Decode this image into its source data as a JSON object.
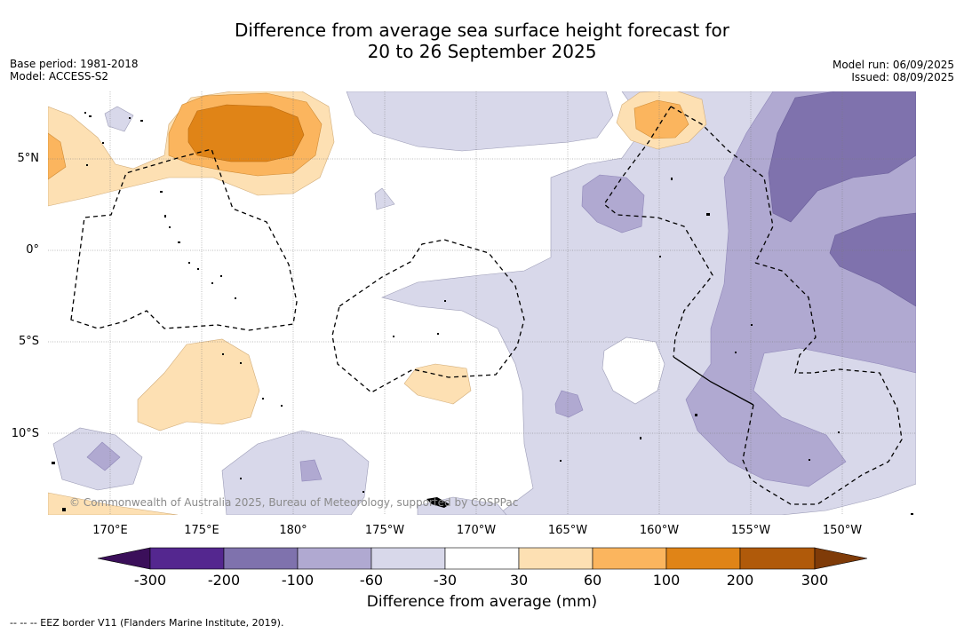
{
  "title": {
    "line1": "Difference from average sea surface height forecast for",
    "line2": "20 to 26 September 2025"
  },
  "meta_left": {
    "base_period": "Base period: 1981-2018",
    "model": "Model: ACCESS-S2"
  },
  "meta_right": {
    "model_run": "Model run: 06/09/2025",
    "issued": "Issued: 08/09/2025"
  },
  "map": {
    "lat_labels": [
      "5°N",
      "0°",
      "5°S",
      "10°S"
    ],
    "lon_labels": [
      "170°E",
      "175°E",
      "180°",
      "175°W",
      "170°W",
      "165°W",
      "160°W",
      "155°W",
      "150°W"
    ],
    "copyright": "© Commonwealth of Australia 2025, Bureau of Meteorology, supported by COSPPac"
  },
  "colorbar": {
    "title": "Difference from average (mm)",
    "ticks": [
      "-300",
      "-200",
      "-100",
      "-60",
      "-30",
      "30",
      "60",
      "100",
      "200",
      "300"
    ],
    "colors": {
      "below_-300": "#3b0f5a",
      "-300_-200": "#54278f",
      "-200_-100": "#7f72ad",
      "-100_-60": "#b0a9d1",
      "-60_-30": "#d8d8ea",
      "-30_30": "#ffffff",
      "30_60": "#fde0b3",
      "60_100": "#fbb55e",
      "100_200": "#e08417",
      "200_300": "#b05a0a",
      "above_300": "#7f3b08"
    }
  },
  "legend_note": "--  --  -- EEZ border V11 (Flanders Marine Institute, 2019)."
}
